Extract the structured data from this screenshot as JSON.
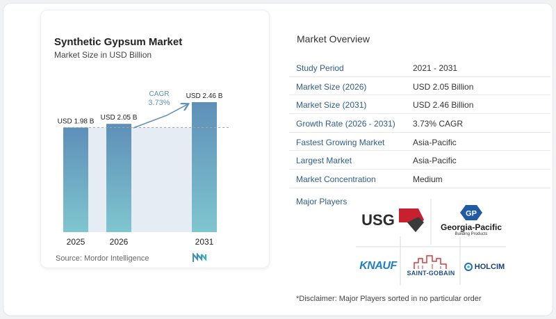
{
  "header": {
    "title": "Synthetic Gypsum Market",
    "subtitle": "Market Size in USD Billion"
  },
  "chart_data": {
    "type": "bar",
    "categories": [
      "2025",
      "2026",
      "2031"
    ],
    "values": [
      1.98,
      2.05,
      2.46
    ],
    "data_labels": [
      "USD 1.98 B",
      "USD 2.05 B",
      "USD 2.46 B"
    ],
    "title": "Synthetic Gypsum Market",
    "subtitle": "Market Size in USD Billion",
    "ylim": [
      0,
      2.5
    ],
    "cagr_label": "CAGR",
    "cagr_value": "3.73%",
    "grid": false,
    "colors": {
      "bar_top": "#5e8fb8",
      "bar_bottom": "#7fc6cf",
      "band": "#e5ecf3",
      "dashed": "#9aa7b4",
      "arrow": "#5e8fb8"
    }
  },
  "source": "Source: Mordor Intelligence",
  "overview": {
    "title": "Market Overview",
    "rows": [
      {
        "label": "Study Period",
        "value": "2021 - 2031"
      },
      {
        "label": "Market Size (2026)",
        "value": "USD 2.05 Billion"
      },
      {
        "label": "Market Size (2031)",
        "value": "USD 2.46 Billion"
      },
      {
        "label": "Growth Rate (2026 - 2031)",
        "value": "3.73% CAGR"
      },
      {
        "label": "Fastest Growing Market",
        "value": "Asia-Pacific"
      },
      {
        "label": "Largest Market",
        "value": "Asia-Pacific"
      },
      {
        "label": "Market Concentration",
        "value": "Medium"
      }
    ]
  },
  "players": {
    "label": "Major Players",
    "logos": {
      "usg": "USG",
      "gp": "GP",
      "gp_name": "Georgia-Pacific",
      "gp_sub": "Building Products",
      "knauf": "KNAUF",
      "saint_gobain": "SAINT-GOBAIN",
      "holcim": "HOLCIM"
    }
  },
  "disclaimer": "*Disclaimer: Major Players sorted in no particular order"
}
